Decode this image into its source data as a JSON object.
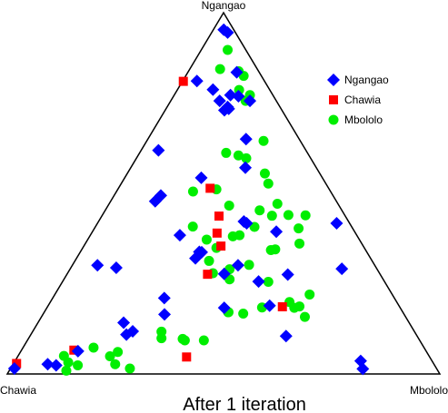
{
  "chart_data": {
    "type": "scatter",
    "subtype": "ternary",
    "title": "After 1 iteration",
    "vertex_labels": {
      "top": "Ngangao",
      "left": "Chawia",
      "right": "Mbololo"
    },
    "legend_position": "top-right",
    "grid": false,
    "series": [
      {
        "name": "Ngangao",
        "marker": "diamond",
        "color": "#0000ff",
        "points": [
          [
            0.953,
            0.024
          ],
          [
            0.945,
            0.037
          ],
          [
            0.835,
            0.113
          ],
          [
            0.811,
            0.033
          ],
          [
            0.787,
            0.082
          ],
          [
            0.769,
            0.15
          ],
          [
            0.772,
            0.13
          ],
          [
            0.756,
            0.183
          ],
          [
            0.756,
            0.113
          ],
          [
            0.739,
            0.14
          ],
          [
            0.73,
            0.137
          ],
          [
            0.734,
            0.145
          ],
          [
            0.65,
            0.227
          ],
          [
            0.619,
            0.04
          ],
          [
            0.571,
            0.265
          ],
          [
            0.543,
            0.177
          ],
          [
            0.494,
            0.108
          ],
          [
            0.478,
            0.103
          ],
          [
            0.422,
            0.336
          ],
          [
            0.417,
            0.345
          ],
          [
            0.417,
            0.553
          ],
          [
            0.394,
            0.425
          ],
          [
            0.384,
            0.207
          ],
          [
            0.338,
            0.275
          ],
          [
            0.337,
            0.281
          ],
          [
            0.32,
            0.275
          ],
          [
            0.301,
            0.058
          ],
          [
            0.301,
            0.383
          ],
          [
            0.291,
            0.628
          ],
          [
            0.294,
            0.105
          ],
          [
            0.277,
            0.363
          ],
          [
            0.275,
            0.511
          ],
          [
            0.256,
            0.453
          ],
          [
            0.21,
            0.258
          ],
          [
            0.189,
            0.512
          ],
          [
            0.183,
            0.41
          ],
          [
            0.165,
            0.281
          ],
          [
            0.142,
            0.198
          ],
          [
            0.118,
            0.231
          ],
          [
            0.109,
            0.221
          ],
          [
            0.105,
            0.592
          ],
          [
            0.063,
            0.132
          ],
          [
            0.036,
            0.799
          ],
          [
            0.027,
            0.08
          ],
          [
            0.024,
            0.101
          ],
          [
            0.015,
            0.009
          ],
          [
            0.014,
            0.815
          ]
        ]
      },
      {
        "name": "Chawia",
        "marker": "square",
        "color": "#ff0000",
        "points": [
          [
            0.81,
            0.002
          ],
          [
            0.514,
            0.212
          ],
          [
            0.437,
            0.271
          ],
          [
            0.39,
            0.29
          ],
          [
            0.354,
            0.317
          ],
          [
            0.276,
            0.325
          ],
          [
            0.186,
            0.543
          ],
          [
            0.066,
            0.121
          ],
          [
            0.047,
            0.391
          ],
          [
            0.029,
            0.007
          ]
        ]
      },
      {
        "name": "Mbololo",
        "marker": "circle",
        "color": "#00ee00",
        "points": [
          [
            0.897,
            0.061
          ],
          [
            0.844,
            0.07
          ],
          [
            0.838,
            0.116
          ],
          [
            0.825,
            0.134
          ],
          [
            0.786,
            0.143
          ],
          [
            0.772,
            0.175
          ],
          [
            0.756,
            0.173
          ],
          [
            0.645,
            0.27
          ],
          [
            0.612,
            0.2
          ],
          [
            0.605,
            0.232
          ],
          [
            0.597,
            0.254
          ],
          [
            0.555,
            0.318
          ],
          [
            0.527,
            0.34
          ],
          [
            0.511,
            0.228
          ],
          [
            0.505,
            0.177
          ],
          [
            0.471,
            0.389
          ],
          [
            0.466,
            0.28
          ],
          [
            0.453,
            0.357
          ],
          [
            0.438,
            0.393
          ],
          [
            0.44,
            0.43
          ],
          [
            0.439,
            0.47
          ],
          [
            0.408,
            0.225
          ],
          [
            0.407,
            0.368
          ],
          [
            0.403,
            0.472
          ],
          [
            0.384,
            0.345
          ],
          [
            0.381,
            0.331
          ],
          [
            0.372,
            0.275
          ],
          [
            0.361,
            0.495
          ],
          [
            0.349,
            0.309
          ],
          [
            0.345,
            0.447
          ],
          [
            0.343,
            0.438
          ],
          [
            0.313,
            0.31
          ],
          [
            0.302,
            0.408
          ],
          [
            0.29,
            0.369
          ],
          [
            0.279,
            0.336
          ],
          [
            0.262,
            0.383
          ],
          [
            0.255,
            0.476
          ],
          [
            0.22,
            0.589
          ],
          [
            0.199,
            0.553
          ],
          [
            0.187,
            0.582
          ],
          [
            0.183,
            0.572
          ],
          [
            0.184,
            0.497
          ],
          [
            0.171,
            0.425
          ],
          [
            0.171,
            0.426
          ],
          [
            0.167,
            0.462
          ],
          [
            0.158,
            0.609
          ],
          [
            0.117,
            0.298
          ],
          [
            0.099,
            0.307
          ],
          [
            0.097,
            0.357
          ],
          [
            0.093,
            0.364
          ],
          [
            0.093,
            0.408
          ],
          [
            0.073,
            0.163
          ],
          [
            0.061,
            0.225
          ],
          [
            0.049,
            0.213
          ],
          [
            0.05,
            0.106
          ],
          [
            0.032,
            0.125
          ],
          [
            0.024,
            0.151
          ],
          [
            0.027,
            0.236
          ],
          [
            0.015,
            0.276
          ],
          [
            0.009,
            0.132
          ]
        ]
      }
    ]
  }
}
